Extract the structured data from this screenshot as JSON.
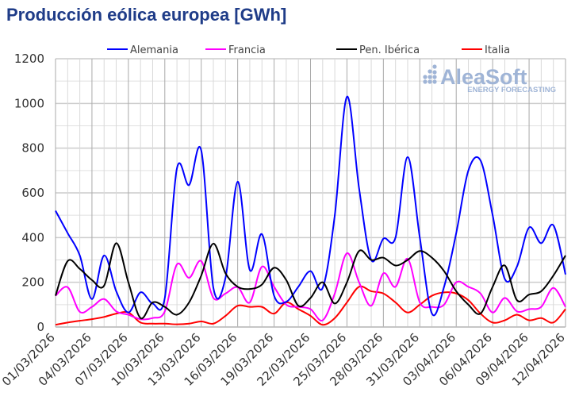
{
  "chart_data": {
    "type": "line",
    "title": "Producción eólica europea [GWh]",
    "xlabel": "",
    "ylabel": "",
    "ylim": [
      0,
      1200
    ],
    "y_ticks": [
      "0",
      "200",
      "400",
      "600",
      "800",
      "1000",
      "1200"
    ],
    "grid": true,
    "legend_position": "top",
    "x": [
      "01/03/2026",
      "02/03/2026",
      "03/03/2026",
      "04/03/2026",
      "05/03/2026",
      "06/03/2026",
      "07/03/2026",
      "08/03/2026",
      "09/03/2026",
      "10/03/2026",
      "11/03/2026",
      "12/03/2026",
      "13/03/2026",
      "14/03/2026",
      "15/03/2026",
      "16/03/2026",
      "17/03/2026",
      "18/03/2026",
      "19/03/2026",
      "20/03/2026",
      "21/03/2026",
      "22/03/2026",
      "23/03/2026",
      "24/03/2026",
      "25/03/2026",
      "26/03/2026",
      "27/03/2026",
      "28/03/2026",
      "29/03/2026",
      "30/03/2026",
      "31/03/2026",
      "01/04/2026",
      "02/04/2026",
      "03/04/2026",
      "04/04/2026",
      "05/04/2026",
      "06/04/2026",
      "07/04/2026",
      "08/04/2026",
      "09/04/2026",
      "10/04/2026",
      "11/04/2026",
      "12/04/2026"
    ],
    "x_tick_labels": [
      "01/03/2026",
      "04/03/2026",
      "07/03/2026",
      "10/03/2026",
      "13/03/2026",
      "16/03/2026",
      "19/03/2026",
      "22/03/2026",
      "25/03/2026",
      "28/03/2026",
      "31/03/2026",
      "03/04/2026",
      "06/04/2026",
      "09/04/2026",
      "12/04/2026"
    ],
    "series": [
      {
        "name": "Alemania",
        "color": "#0000ff",
        "values": [
          520,
          420,
          320,
          125,
          320,
          160,
          65,
          155,
          105,
          130,
          710,
          635,
          790,
          175,
          220,
          650,
          255,
          415,
          140,
          113,
          180,
          250,
          175,
          500,
          1030,
          620,
          300,
          395,
          400,
          760,
          400,
          60,
          180,
          420,
          700,
          745,
          500,
          215,
          270,
          445,
          375,
          455,
          235
        ]
      },
      {
        "name": "Francia",
        "color": "#ff00ff",
        "values": [
          140,
          178,
          68,
          90,
          125,
          70,
          55,
          35,
          40,
          70,
          280,
          220,
          295,
          130,
          150,
          178,
          110,
          270,
          180,
          100,
          90,
          80,
          30,
          150,
          330,
          200,
          95,
          240,
          180,
          305,
          110,
          90,
          100,
          200,
          180,
          150,
          65,
          130,
          70,
          80,
          90,
          175,
          90
        ]
      },
      {
        "name": "Pen. Ibérica",
        "color": "#000000",
        "values": [
          140,
          295,
          260,
          210,
          185,
          375,
          200,
          40,
          110,
          90,
          55,
          110,
          230,
          373,
          240,
          180,
          170,
          190,
          265,
          210,
          95,
          130,
          200,
          105,
          200,
          340,
          300,
          310,
          275,
          300,
          340,
          310,
          250,
          160,
          100,
          60,
          180,
          275,
          120,
          145,
          160,
          230,
          320
        ]
      },
      {
        "name": "Italia",
        "color": "#ff0000",
        "values": [
          10,
          20,
          28,
          35,
          45,
          60,
          65,
          20,
          15,
          15,
          12,
          15,
          25,
          15,
          50,
          95,
          90,
          90,
          60,
          110,
          80,
          50,
          10,
          40,
          110,
          180,
          160,
          150,
          110,
          65,
          100,
          140,
          155,
          150,
          120,
          60,
          20,
          30,
          55,
          30,
          40,
          20,
          80
        ]
      }
    ]
  },
  "watermark": {
    "brand": "AleaSoft",
    "tagline": "ENERGY FORECASTING",
    "color": "#9fb4d6"
  }
}
